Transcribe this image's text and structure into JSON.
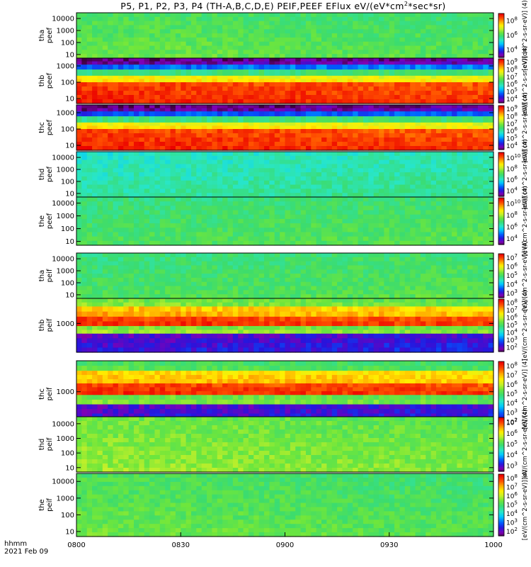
{
  "title": {
    "main": "P5, P1, P2, P3, P4 (TH-A,B,C,D,E) PEIF,PEEF EFlux eV/(eV*cm",
    "sup": "2",
    "tail": "*sec*sr)"
  },
  "bottom_left": {
    "line1": "hhmm",
    "line2": "2021 Feb 09"
  },
  "chart_data": {
    "type": "heatmap",
    "x_tick_labels": [
      "0800",
      "0830",
      "0900",
      "0930",
      "1000"
    ],
    "x_ticks_hours": [
      8.0,
      8.5,
      9.0,
      9.5,
      10.0
    ],
    "xlim_hours": [
      8.0,
      10.0
    ],
    "colormap": "rainbow (black/purple low -> blue -> cyan -> green -> yellow -> red high)",
    "panels": [
      {
        "id": "tha_peef",
        "ylabel": [
          "tha",
          "peef"
        ],
        "yticks": [
          "10000",
          "1000",
          "100",
          "10"
        ],
        "log": true,
        "ylim": [
          5,
          30000
        ],
        "cb_ticks": [
          "8",
          "6",
          "4"
        ],
        "cb_unit": "[eV/(cm^2-s-sr-eV)] (4)",
        "bands": [
          {
            "lo": 5,
            "hi": 30000,
            "level": 0.55
          }
        ]
      },
      {
        "id": "thb_peef",
        "ylabel": [
          "thb",
          "peef"
        ],
        "yticks": [
          "1000",
          "100",
          "10"
        ],
        "log": true,
        "ylim": [
          5,
          3000
        ],
        "cb_ticks": [
          "9",
          "8",
          "7",
          "6",
          "5",
          "4"
        ],
        "cb_unit": "[eV/(cm^2-s-sr-eV)] (4)",
        "bands": [
          {
            "lo": 1200,
            "hi": 3000,
            "level": 0.05
          },
          {
            "lo": 600,
            "hi": 1200,
            "level": 0.25
          },
          {
            "lo": 250,
            "hi": 600,
            "level": 0.5
          },
          {
            "lo": 100,
            "hi": 250,
            "level": 0.75
          },
          {
            "lo": 5,
            "hi": 100,
            "level": 0.95
          }
        ]
      },
      {
        "id": "thc_peef",
        "ylabel": [
          "thc",
          "peef"
        ],
        "yticks": [
          "1000",
          "100",
          "10"
        ],
        "log": true,
        "ylim": [
          5,
          3000
        ],
        "cb_ticks": [
          "9",
          "8",
          "7",
          "6",
          "5",
          "4"
        ],
        "cb_unit": "[eV/(cm^2-s-sr-eV)] (4)",
        "bands": [
          {
            "lo": 1200,
            "hi": 3000,
            "level": 0.05
          },
          {
            "lo": 600,
            "hi": 1200,
            "level": 0.22
          },
          {
            "lo": 250,
            "hi": 600,
            "level": 0.5
          },
          {
            "lo": 100,
            "hi": 250,
            "level": 0.75
          },
          {
            "lo": 5,
            "hi": 100,
            "level": 0.95
          }
        ]
      },
      {
        "id": "thd_peef",
        "ylabel": [
          "thd",
          "peef"
        ],
        "yticks": [
          "10000",
          "1000",
          "100",
          "10"
        ],
        "log": true,
        "ylim": [
          5,
          30000
        ],
        "cb_ticks": [
          "10",
          "8",
          "6",
          "4"
        ],
        "cb_unit": "[eV/(cm^2-s-sr-eV)] (4)",
        "bands": [
          {
            "lo": 5,
            "hi": 30000,
            "level": 0.42
          }
        ]
      },
      {
        "id": "the_peef",
        "ylabel": [
          "the",
          "peef"
        ],
        "yticks": [
          "10000",
          "1000",
          "100",
          "10"
        ],
        "log": true,
        "ylim": [
          5,
          30000
        ],
        "cb_ticks": [
          "10",
          "8",
          "6",
          "4"
        ],
        "cb_unit": "[eV/(cm^2-s-sr-eV)] (4)",
        "bands": [
          {
            "lo": 5,
            "hi": 30000,
            "level": 0.5
          }
        ]
      },
      {
        "id": "tha_peif",
        "ylabel": [
          "tha",
          "peif"
        ],
        "yticks": [
          "10000",
          "1000",
          "100",
          "10"
        ],
        "log": true,
        "ylim": [
          5,
          30000
        ],
        "cb_ticks": [
          "7",
          "6",
          "5",
          "4",
          "3"
        ],
        "cb_unit": "[eV/(cm^2-s-sr-eV)] (4)",
        "bands": [
          {
            "lo": 5,
            "hi": 30000,
            "level": 0.5
          }
        ]
      },
      {
        "id": "thb_peif",
        "ylabel": [
          "thb",
          "peif"
        ],
        "yticks": [
          "1000"
        ],
        "log": true,
        "ylim": [
          20,
          30000
        ],
        "cb_ticks": [
          "8",
          "7",
          "6",
          "5",
          "4",
          "3",
          "2"
        ],
        "cb_unit": "[eV/(cm^2-s-sr-eV)] (4)",
        "bands": [
          {
            "lo": 10000,
            "hi": 30000,
            "level": 0.6
          },
          {
            "lo": 2500,
            "hi": 10000,
            "level": 0.82
          },
          {
            "lo": 700,
            "hi": 2500,
            "level": 0.95
          },
          {
            "lo": 250,
            "hi": 700,
            "level": 0.62
          },
          {
            "lo": 20,
            "hi": 250,
            "level": 0.12
          }
        ]
      },
      {
        "id": "thc_peif",
        "ylabel": [
          "thc",
          "peif"
        ],
        "yticks": [
          "1000"
        ],
        "log": true,
        "ylim": [
          20,
          30000
        ],
        "cb_ticks": [
          "8",
          "7",
          "6",
          "5",
          "4",
          "3",
          "2"
        ],
        "cb_unit": "[eV/(cm^2-s-sr-eV)] (4)",
        "bands": [
          {
            "lo": 10000,
            "hi": 30000,
            "level": 0.55
          },
          {
            "lo": 2500,
            "hi": 10000,
            "level": 0.8
          },
          {
            "lo": 700,
            "hi": 2500,
            "level": 0.95
          },
          {
            "lo": 250,
            "hi": 700,
            "level": 0.6
          },
          {
            "lo": 20,
            "hi": 250,
            "level": 0.12
          }
        ]
      },
      {
        "id": "thd_peif",
        "ylabel": [
          "thd",
          "peif"
        ],
        "yticks": [
          "10000",
          "1000",
          "100",
          "10"
        ],
        "log": true,
        "ylim": [
          5,
          30000
        ],
        "cb_ticks": [
          "7",
          "6",
          "5",
          "4",
          "3"
        ],
        "cb_unit": "[eV/(cm^2-s-sr-eV)] (4)",
        "bands": [
          {
            "lo": 5,
            "hi": 30000,
            "level": 0.6
          }
        ]
      },
      {
        "id": "the_peif",
        "ylabel": [
          "the",
          "peif"
        ],
        "yticks": [
          "10000",
          "1000",
          "100",
          "10"
        ],
        "log": true,
        "ylim": [
          5,
          30000
        ],
        "cb_ticks": [
          "8",
          "7",
          "6",
          "5",
          "4",
          "3",
          "2"
        ],
        "cb_unit": "[eV/(cm^2-s-sr-eV)] (4)",
        "bands": [
          {
            "lo": 5,
            "hi": 30000,
            "level": 0.55
          }
        ]
      }
    ]
  }
}
